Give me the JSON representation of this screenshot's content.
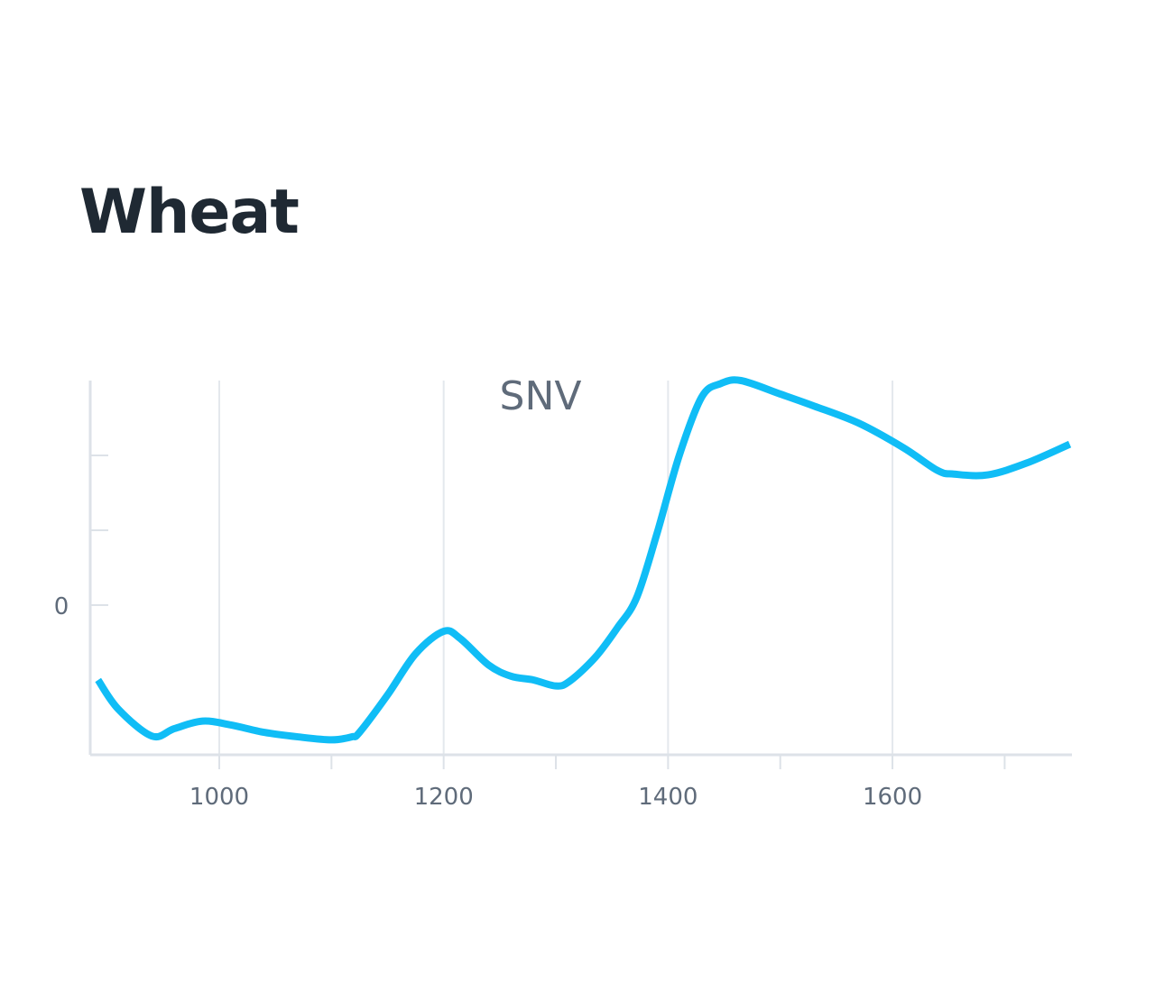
{
  "page": {
    "title": "Wheat"
  },
  "chart_data": {
    "type": "line",
    "title": "SNV",
    "xlabel": "",
    "ylabel": "",
    "xlim": [
      885,
      1760
    ],
    "ylim": [
      -2,
      3
    ],
    "x_ticks_major": [
      1000,
      1200,
      1400,
      1600
    ],
    "x_ticks_minor": [
      1100,
      1300,
      1500,
      1700
    ],
    "y_ticks": [
      0,
      1,
      2
    ],
    "y_tick_labels": [
      "0",
      "",
      ""
    ],
    "grid": "vertical",
    "color": "#10bdf6",
    "series": [
      {
        "x": [
          892,
          910,
          940,
          960,
          985,
          1010,
          1040,
          1070,
          1100,
          1118,
          1125,
          1150,
          1175,
          1200,
          1215,
          1240,
          1260,
          1280,
          1300,
          1312,
          1335,
          1355,
          1372,
          1390,
          1410,
          1430,
          1447,
          1465,
          1500,
          1530,
          1570,
          1610,
          1640,
          1655,
          1685,
          1720,
          1758
        ],
        "y": [
          -1.0,
          -1.39,
          -1.75,
          -1.65,
          -1.55,
          -1.6,
          -1.7,
          -1.76,
          -1.8,
          -1.76,
          -1.7,
          -1.2,
          -0.65,
          -0.35,
          -0.45,
          -0.8,
          -0.95,
          -1.0,
          -1.08,
          -1.02,
          -0.7,
          -0.3,
          0.1,
          0.95,
          2.0,
          2.78,
          2.96,
          3.0,
          2.82,
          2.66,
          2.43,
          2.1,
          1.8,
          1.75,
          1.74,
          1.9,
          2.15
        ]
      }
    ]
  }
}
